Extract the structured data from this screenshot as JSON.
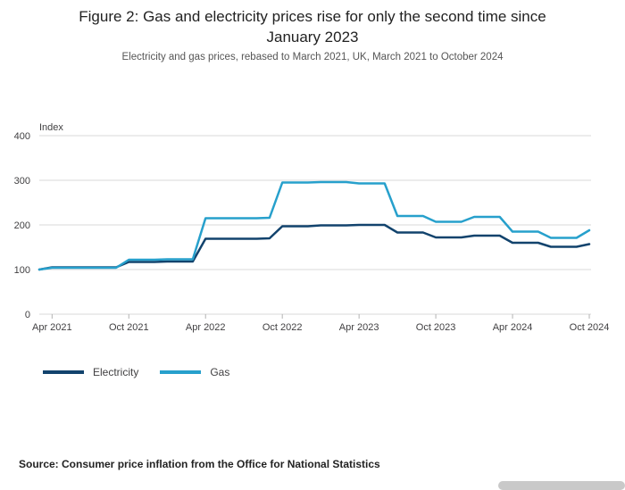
{
  "header": {
    "title_line1": "Figure 2: Gas and electricity prices rise for only the second time since",
    "title_line2": "January 2023",
    "subtitle": "Electricity and gas prices, rebased to March 2021, UK, March 2021 to October 2024"
  },
  "chart_data": {
    "type": "line",
    "title": "Figure 2: Gas and electricity prices rise for only the second time since January 2023",
    "subtitle": "Electricity and gas prices, rebased to March 2021, UK, March 2021 to October 2024",
    "y_axis_label": "Index",
    "ylim": [
      0,
      400
    ],
    "y_ticks": [
      0,
      100,
      200,
      300,
      400
    ],
    "grid": "horizontal",
    "legend_position": "bottom-left",
    "x_tick_labels": [
      "Apr 2021",
      "Oct 2021",
      "Apr 2022",
      "Oct 2022",
      "Apr 2023",
      "Oct 2023",
      "Apr 2024",
      "Oct 2024"
    ],
    "x": [
      "Mar 2021",
      "Apr 2021",
      "May 2021",
      "Jun 2021",
      "Jul 2021",
      "Aug 2021",
      "Sep 2021",
      "Oct 2021",
      "Nov 2021",
      "Dec 2021",
      "Jan 2022",
      "Feb 2022",
      "Mar 2022",
      "Apr 2022",
      "May 2022",
      "Jun 2022",
      "Jul 2022",
      "Aug 2022",
      "Sep 2022",
      "Oct 2022",
      "Nov 2022",
      "Dec 2022",
      "Jan 2023",
      "Feb 2023",
      "Mar 2023",
      "Apr 2023",
      "May 2023",
      "Jun 2023",
      "Jul 2023",
      "Aug 2023",
      "Sep 2023",
      "Oct 2023",
      "Nov 2023",
      "Dec 2023",
      "Jan 2024",
      "Feb 2024",
      "Mar 2024",
      "Apr 2024",
      "May 2024",
      "Jun 2024",
      "Jul 2024",
      "Aug 2024",
      "Sep 2024",
      "Oct 2024"
    ],
    "series": [
      {
        "name": "Electricity",
        "color": "#12436D",
        "values": [
          100,
          105,
          105,
          105,
          105,
          105,
          105,
          117,
          117,
          117,
          118,
          118,
          118,
          169,
          169,
          169,
          169,
          169,
          170,
          197,
          197,
          197,
          199,
          199,
          199,
          200,
          200,
          200,
          183,
          183,
          183,
          172,
          172,
          172,
          176,
          176,
          176,
          160,
          160,
          160,
          151,
          151,
          151,
          157
        ]
      },
      {
        "name": "Gas",
        "color": "#27A0CC",
        "values": [
          100,
          104,
          104,
          104,
          104,
          104,
          104,
          122,
          122,
          122,
          123,
          123,
          123,
          215,
          215,
          215,
          215,
          215,
          216,
          295,
          295,
          295,
          296,
          296,
          296,
          293,
          293,
          293,
          220,
          220,
          220,
          207,
          207,
          207,
          218,
          218,
          218,
          185,
          185,
          185,
          171,
          171,
          171,
          188
        ]
      }
    ],
    "colors": {
      "gridline": "#d9d9d9",
      "tick_mark": "#b3b3b3",
      "axis_text": "#414042"
    }
  },
  "legend": {
    "items": [
      {
        "label": "Electricity",
        "color": "#12436D"
      },
      {
        "label": "Gas",
        "color": "#27A0CC"
      }
    ]
  },
  "footer": {
    "source": "Source: Consumer price inflation from the Office for National Statistics"
  }
}
